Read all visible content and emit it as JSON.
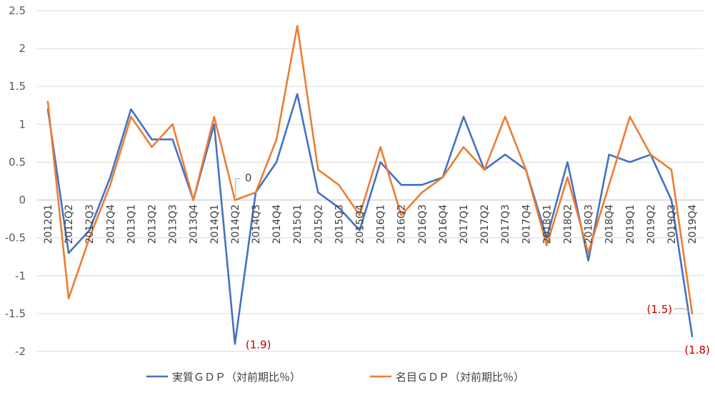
{
  "chart_data": {
    "type": "line",
    "title": "",
    "xlabel": "",
    "ylabel": "",
    "ylim": [
      -2,
      2.5
    ],
    "yticks": [
      -2,
      -1.5,
      -1,
      -0.5,
      0,
      0.5,
      1,
      1.5,
      2,
      2.5
    ],
    "ytick_labels": [
      "-2",
      "-1.5",
      "-1",
      "-0.5",
      "0",
      "0.5",
      "1",
      "1.5",
      "2",
      "2.5"
    ],
    "grid": "horizontal",
    "legend_position": "bottom",
    "categories": [
      "2012Q1",
      "2012Q2",
      "2012Q3",
      "2012Q4",
      "2013Q1",
      "2013Q2",
      "2013Q3",
      "2013Q4",
      "2014Q1",
      "2014Q2",
      "2014Q3",
      "2014Q4",
      "2015Q1",
      "2015Q2",
      "2015Q3",
      "2015Q4",
      "2016Q1",
      "2016Q2",
      "2016Q3",
      "2016Q4",
      "2017Q1",
      "2017Q2",
      "2017Q3",
      "2017Q4",
      "2018Q1",
      "2018Q2",
      "2018Q3",
      "2018Q4",
      "2019Q1",
      "2019Q2",
      "2019Q3",
      "2019Q4"
    ],
    "series": [
      {
        "name": "実質ＧＤＰ（対前期比％）",
        "color": "#4472c4",
        "values": [
          1.2,
          -0.7,
          -0.4,
          0.3,
          1.2,
          0.8,
          0.8,
          0.0,
          1.0,
          -1.9,
          0.1,
          0.5,
          1.4,
          0.1,
          -0.1,
          -0.4,
          0.5,
          0.2,
          0.2,
          0.3,
          1.1,
          0.4,
          0.6,
          0.4,
          -0.5,
          0.5,
          -0.8,
          0.6,
          0.5,
          0.6,
          0.0,
          -1.8
        ]
      },
      {
        "name": "名目ＧＤＰ（対前期比％）",
        "color": "#ed7d31",
        "values": [
          1.3,
          -1.3,
          -0.5,
          0.2,
          1.1,
          0.7,
          1.0,
          0.0,
          1.1,
          0.0,
          0.1,
          0.8,
          2.3,
          0.4,
          0.2,
          -0.2,
          0.7,
          -0.2,
          0.1,
          0.3,
          0.7,
          0.4,
          1.1,
          0.4,
          -0.6,
          0.3,
          -0.7,
          0.2,
          1.1,
          0.6,
          0.4,
          -1.5
        ]
      }
    ],
    "annotations": [
      {
        "text": "0",
        "series": 1,
        "index": 9,
        "color": "#404040"
      },
      {
        "text": "(1.9)",
        "series": 0,
        "index": 9,
        "color": "#c00000"
      },
      {
        "text": "(1.5)",
        "series": 1,
        "index": 31,
        "color": "#c00000"
      },
      {
        "text": "(1.8)",
        "series": 0,
        "index": 31,
        "color": "#c00000"
      }
    ]
  }
}
